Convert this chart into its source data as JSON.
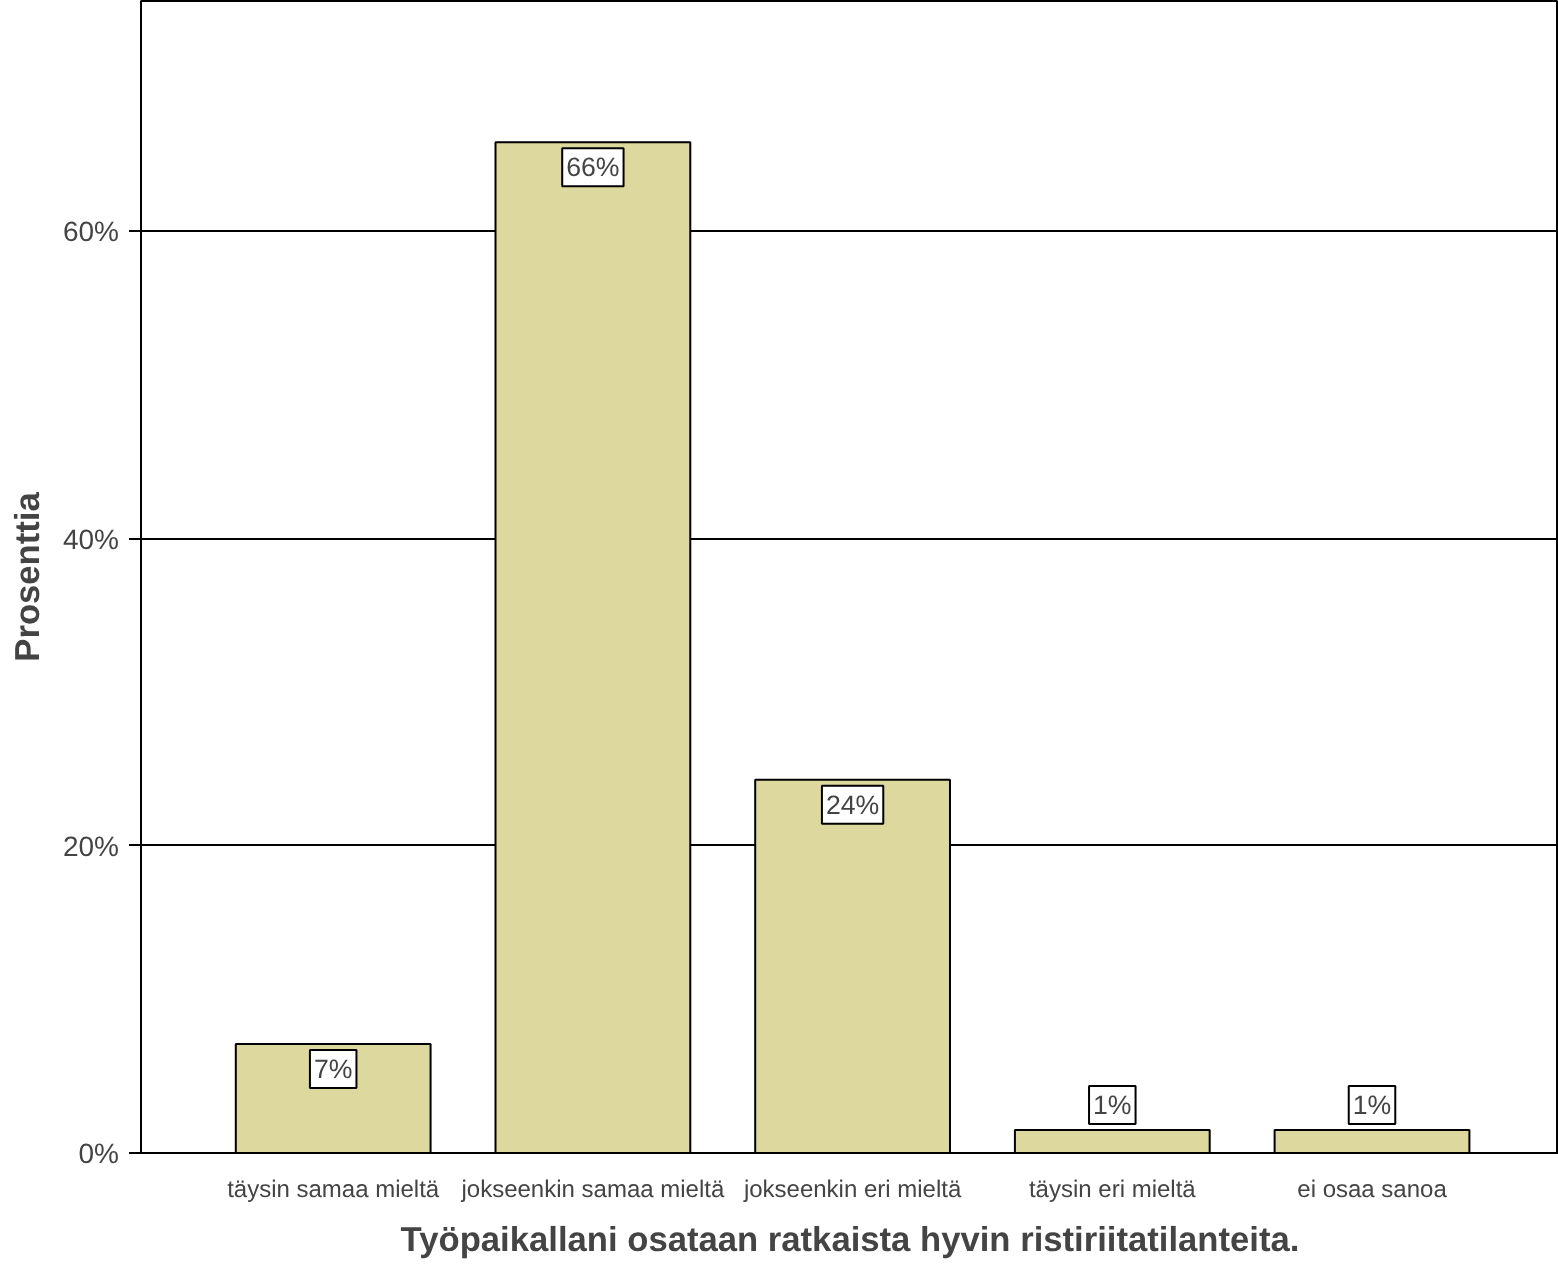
{
  "chart_data": {
    "type": "bar",
    "xlabel": "Työpaikallani osataan ratkaista hyvin ristiriitatilanteita.",
    "ylabel": "Prosenttia",
    "categories": [
      "täysin samaa mieltä",
      "jokseenkin samaa mieltä",
      "jokseenkin eri mieltä",
      "täysin eri mieltä",
      "ei osaa sanoa"
    ],
    "values": [
      7.1,
      65.8,
      24.3,
      1.5,
      1.5
    ],
    "value_labels": [
      "7%",
      "66%",
      "24%",
      "1%",
      "1%"
    ],
    "color": "#dcd89e",
    "ylim": [
      0,
      75
    ],
    "yticks": [
      {
        "value": 0,
        "label": "0%"
      },
      {
        "value": 20,
        "label": "20%"
      },
      {
        "value": 40,
        "label": "40%"
      },
      {
        "value": 60,
        "label": "60%"
      }
    ],
    "grid": "y"
  }
}
